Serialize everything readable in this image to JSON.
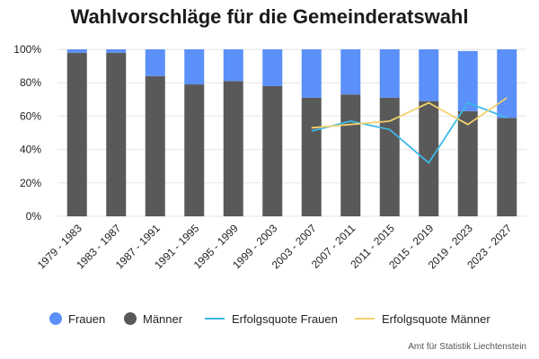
{
  "title": "Wahlvorschläge für die Gemeinderatswahl",
  "source": "Amt für Statistik Liechtenstein",
  "colors": {
    "frauen": "#5b8ff9",
    "maenner": "#595959",
    "erfolg_frauen": "#3cb9e8",
    "erfolg_maenner": "#f2d16b",
    "grid": "#e6e6e6"
  },
  "legend": [
    {
      "label": "Frauen",
      "kind": "dot",
      "color": "#5b8ff9"
    },
    {
      "label": "Männer",
      "kind": "dot",
      "color": "#595959"
    },
    {
      "label": "Erfolgsquote Frauen",
      "kind": "line",
      "color": "#3cb9e8"
    },
    {
      "label": "Erfolgsquote Männer",
      "kind": "line",
      "color": "#f2d16b"
    }
  ],
  "chart_data": {
    "type": "bar",
    "stacked": true,
    "title": "Wahlvorschläge für die Gemeinderatswahl",
    "ylim": [
      0,
      100
    ],
    "yticks": [
      "0%",
      "20%",
      "40%",
      "60%",
      "80%",
      "100%"
    ],
    "ytick_values": [
      0,
      20,
      40,
      60,
      80,
      100
    ],
    "categories": [
      "1979 - 1983",
      "1983 - 1987",
      "1987 - 1991",
      "1991 - 1995",
      "1995 - 1999",
      "1999 - 2003",
      "2003 - 2007",
      "2007 - 2011",
      "2011 - 2015",
      "2015 - 2019",
      "2019 - 2023",
      "2023 - 2027"
    ],
    "series": [
      {
        "name": "Männer",
        "type": "bar",
        "values": [
          98,
          98,
          84,
          79,
          81,
          78,
          71,
          73,
          71,
          69,
          63,
          59
        ]
      },
      {
        "name": "Frauen",
        "type": "bar",
        "values": [
          2,
          2,
          16,
          21,
          19,
          22,
          29,
          27,
          29,
          31,
          36,
          41
        ]
      },
      {
        "name": "Erfolgsquote Frauen",
        "type": "line",
        "values": [
          null,
          null,
          null,
          null,
          null,
          null,
          51,
          57,
          52,
          32,
          68,
          59
        ]
      },
      {
        "name": "Erfolgsquote Männer",
        "type": "line",
        "values": [
          null,
          null,
          null,
          null,
          null,
          null,
          53,
          55,
          57,
          68,
          55,
          71
        ]
      }
    ]
  }
}
